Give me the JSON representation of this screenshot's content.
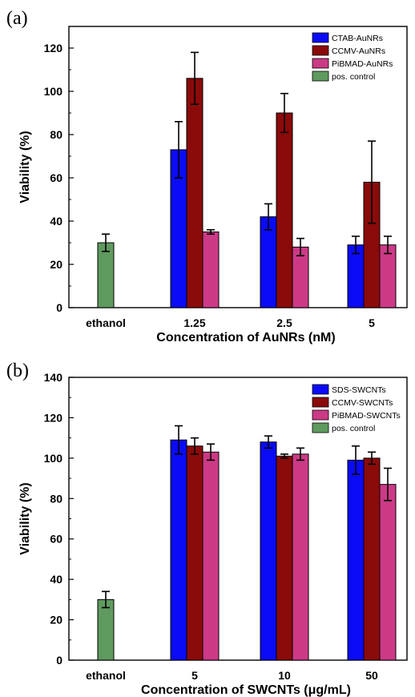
{
  "chart_data": [
    {
      "type": "bar",
      "panel_label": "(a)",
      "xlabel": "Concentration of AuNRs (nM)",
      "ylabel": "Viability (%)",
      "ylim": [
        0,
        130
      ],
      "yticks": [
        0,
        20,
        40,
        60,
        80,
        100,
        120
      ],
      "categories": [
        "ethanol",
        "1.25",
        "2.5",
        "5"
      ],
      "legend_position": "top-right",
      "series": [
        {
          "name": "CTAB-AuNRs",
          "color": "#0b0bf5",
          "values": [
            null,
            73,
            42,
            29
          ],
          "errors": [
            null,
            13,
            6,
            4
          ]
        },
        {
          "name": "CCMV-AuNRs",
          "color": "#8b0a0a",
          "values": [
            null,
            106,
            90,
            58
          ],
          "errors": [
            null,
            12,
            9,
            19
          ]
        },
        {
          "name": "PiBMAD-AuNRs",
          "color": "#cc3a86",
          "values": [
            null,
            35,
            28,
            29
          ],
          "errors": [
            null,
            1,
            4,
            4
          ]
        },
        {
          "name": "pos. control",
          "color": "#5f9a5f",
          "values": [
            30,
            null,
            null,
            null
          ],
          "errors": [
            4,
            null,
            null,
            null
          ]
        }
      ]
    },
    {
      "type": "bar",
      "panel_label": "(b)",
      "xlabel": "Concentration of SWCNTs (μg/mL)",
      "ylabel": "Viability (%)",
      "ylim": [
        0,
        140
      ],
      "yticks": [
        0,
        20,
        40,
        60,
        80,
        100,
        120,
        140
      ],
      "categories": [
        "ethanol",
        "5",
        "10",
        "50"
      ],
      "legend_position": "top-right",
      "series": [
        {
          "name": "SDS-SWCNTs",
          "color": "#0b0bf5",
          "values": [
            null,
            109,
            108,
            99
          ],
          "errors": [
            null,
            7,
            3,
            7
          ]
        },
        {
          "name": "CCMV-SWCNTs",
          "color": "#8b0a0a",
          "values": [
            null,
            106,
            101,
            100
          ],
          "errors": [
            null,
            4,
            1,
            3
          ]
        },
        {
          "name": "PiBMAD-SWCNTs",
          "color": "#cc3a86",
          "values": [
            null,
            103,
            102,
            87
          ],
          "errors": [
            null,
            4,
            3,
            8
          ]
        },
        {
          "name": "pos. control",
          "color": "#5f9a5f",
          "values": [
            30,
            null,
            null,
            null
          ],
          "errors": [
            4,
            null,
            null,
            null
          ]
        }
      ]
    }
  ]
}
